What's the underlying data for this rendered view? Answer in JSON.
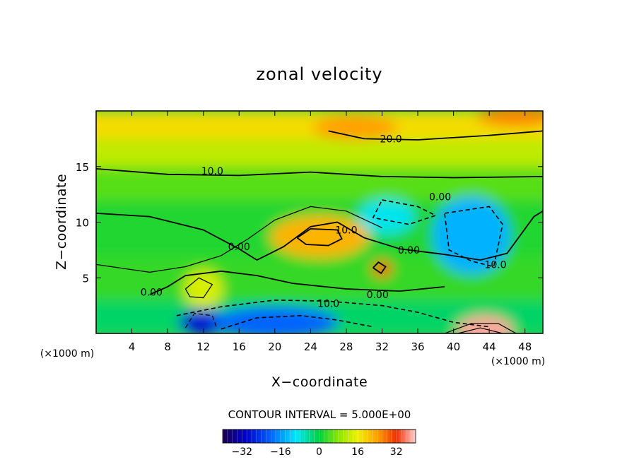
{
  "chart_data": {
    "type": "heatmap",
    "title": "zonal velocity",
    "xlabel": "X−coordinate",
    "ylabel": "Z−coordinate",
    "x_unit": "(×1000 m)",
    "y_unit": "(×1000 m)",
    "xlim": [
      0,
      50
    ],
    "ylim": [
      0,
      20
    ],
    "x_ticks": [
      4,
      8,
      12,
      16,
      20,
      24,
      28,
      32,
      36,
      40,
      44,
      48
    ],
    "y_ticks": [
      5,
      10,
      15
    ],
    "grid": false,
    "contour_interval_text": "CONTOUR INTERVAL = 5.000E+00",
    "contour_interval": 5.0,
    "contour_labels": [
      {
        "text": "20.0",
        "x": 33,
        "y": 17.5
      },
      {
        "text": "10.0",
        "x": 13,
        "y": 14.6
      },
      {
        "text": "0.00",
        "x": 38.5,
        "y": 12.3
      },
      {
        "text": "0.00",
        "x": 16,
        "y": 7.8
      },
      {
        "text": "10.0",
        "x": 28,
        "y": 9.3
      },
      {
        "text": "0.00",
        "x": 35,
        "y": 7.5
      },
      {
        "text": "10.0",
        "x": 44.7,
        "y": 6.2
      },
      {
        "text": "0.00",
        "x": 6.2,
        "y": 3.7
      },
      {
        "text": "0.00",
        "x": 31.5,
        "y": 3.5
      },
      {
        "text": "10.0",
        "x": 26,
        "y": 2.7
      }
    ],
    "colorbar": {
      "min": -40,
      "max": 40,
      "tick_labels": [
        "−32",
        "−16",
        "0",
        "16",
        "32"
      ],
      "tick_values": [
        -32,
        -16,
        0,
        16,
        32
      ]
    },
    "features": [
      {
        "kind": "max",
        "x": 25,
        "y": 8.7,
        "value": 22
      },
      {
        "kind": "max",
        "x": 32,
        "y": 5.8,
        "value": 30
      },
      {
        "kind": "max",
        "x": 43.5,
        "y": 0.2,
        "value": 38
      },
      {
        "kind": "max",
        "x": 29,
        "y": 18.5,
        "value": 24
      },
      {
        "kind": "max",
        "x": 47,
        "y": 19.5,
        "value": 26
      },
      {
        "kind": "min",
        "x": 12,
        "y": 1.0,
        "value": -28
      },
      {
        "kind": "min",
        "x": 20,
        "y": 1.0,
        "value": -20
      },
      {
        "kind": "min",
        "x": 42,
        "y": 8.8,
        "value": -14
      },
      {
        "kind": "min",
        "x": 32.5,
        "y": 10.5,
        "value": -9
      },
      {
        "kind": "max",
        "x": 12,
        "y": 4.0,
        "value": 14
      }
    ],
    "colors": {
      "frame": "#000000",
      "background": "#ffffff"
    }
  }
}
